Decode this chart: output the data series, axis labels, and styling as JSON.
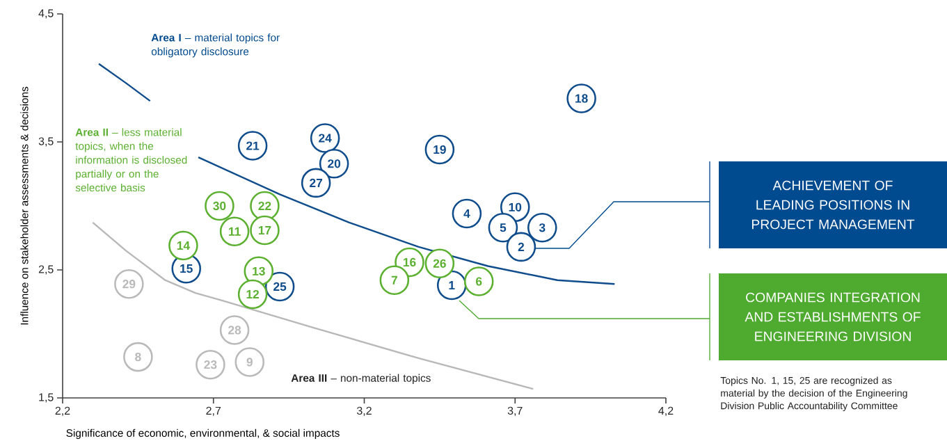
{
  "chart_data": {
    "type": "scatter",
    "xlabel": "Significance of economic, environmental, & social impacts",
    "ylabel": "Influence on stakeholder assessments & decisions",
    "xlim": [
      2.2,
      4.2
    ],
    "ylim": [
      1.5,
      4.5
    ],
    "xticks": [
      {
        "value": 2.2,
        "label": "2,2"
      },
      {
        "value": 2.7,
        "label": "2,7"
      },
      {
        "value": 3.2,
        "label": "3,2"
      },
      {
        "value": 3.7,
        "label": "3,7"
      },
      {
        "value": 4.2,
        "label": "4,2"
      }
    ],
    "yticks": [
      {
        "value": 1.5,
        "label": "1,5"
      },
      {
        "value": 2.5,
        "label": "2,5"
      },
      {
        "value": 3.5,
        "label": "3,5"
      },
      {
        "value": 4.5,
        "label": "4,5"
      }
    ],
    "marker": "circle",
    "series": [
      {
        "type": "line",
        "marker": "none",
        "color": "#b8b8b8",
        "x": [
          2.3,
          2.41,
          2.54,
          2.64,
          2.73,
          3.03,
          3.38,
          3.76
        ],
        "values": [
          2.87,
          2.65,
          2.42,
          2.32,
          2.26,
          2.05,
          1.81,
          1.57
        ]
      },
      {
        "type": "line",
        "marker": "none",
        "color": "#0f4c8c",
        "x": [
          2.32,
          2.41,
          2.49,
          2.57,
          2.65,
          2.92,
          3.15,
          3.38,
          3.61,
          3.84,
          4.03
        ],
        "values": [
          4.11,
          3.96,
          3.82,
          null,
          3.38,
          3.09,
          2.87,
          2.68,
          2.53,
          2.42,
          2.39
        ]
      },
      {
        "color": "#b9b9b9",
        "x": [
          2.42,
          2.77,
          2.45,
          2.69,
          2.82
        ],
        "values": [
          2.39,
          2.03,
          1.82,
          1.76,
          1.78
        ]
      },
      {
        "color": "#0f4c8c",
        "x": [
          3.92,
          2.83,
          3.07,
          3.1,
          3.04,
          3.45,
          3.54,
          3.7,
          3.66,
          3.79,
          3.72,
          3.49,
          2.61,
          2.92
        ],
        "values": [
          3.84,
          3.47,
          3.53,
          3.33,
          3.18,
          3.44,
          2.94,
          2.99,
          2.83,
          2.83,
          2.68,
          2.38,
          2.51,
          2.37
        ]
      },
      {
        "color": "#5bb030",
        "x": [
          2.72,
          2.87,
          2.77,
          2.87,
          2.6,
          2.85,
          2.83,
          3.35,
          3.45,
          3.3,
          3.58
        ],
        "values": [
          3.0,
          3.0,
          2.8,
          2.81,
          2.69,
          2.49,
          2.31,
          2.56,
          2.55,
          2.42,
          2.41
        ]
      }
    ],
    "annotations": [
      "**Area I** – material topics for obligatory disclosure",
      "**Area II** – less material topics, when the information is disclosed partially or on the selective basis",
      "**Area III** – non-material topics",
      "ACHIEVEMENT OF LEADING POSITIONS IN PROJECT MANAGEMENT",
      "COMPANIES INTEGRATION AND ESTABLISHMENTS OF ENGINEERING DIVISION",
      "Topics No. 1, 15, 25 are recognized as material by the decision of the Engineering Division Public Accountability Committee",
      {
        "text": "29",
        "x": 2.42,
        "y": 2.39
      },
      {
        "text": "28",
        "x": 2.77,
        "y": 2.03
      },
      {
        "text": "8",
        "x": 2.45,
        "y": 1.82
      },
      {
        "text": "23",
        "x": 2.69,
        "y": 1.76
      },
      {
        "text": "9",
        "x": 2.82,
        "y": 1.78
      },
      {
        "text": "18",
        "x": 3.92,
        "y": 3.84
      },
      {
        "text": "21",
        "x": 2.83,
        "y": 3.47
      },
      {
        "text": "24",
        "x": 3.07,
        "y": 3.53
      },
      {
        "text": "20",
        "x": 3.1,
        "y": 3.33
      },
      {
        "text": "27",
        "x": 3.04,
        "y": 3.18
      },
      {
        "text": "19",
        "x": 3.45,
        "y": 3.44
      },
      {
        "text": "4",
        "x": 3.54,
        "y": 2.94
      },
      {
        "text": "10",
        "x": 3.7,
        "y": 2.99
      },
      {
        "text": "5",
        "x": 3.66,
        "y": 2.83
      },
      {
        "text": "3",
        "x": 3.79,
        "y": 2.83
      },
      {
        "text": "2",
        "x": 3.72,
        "y": 2.68
      },
      {
        "text": "1",
        "x": 3.49,
        "y": 2.38
      },
      {
        "text": "15",
        "x": 2.61,
        "y": 2.51
      },
      {
        "text": "25",
        "x": 2.92,
        "y": 2.37
      },
      {
        "text": "30",
        "x": 2.72,
        "y": 3.0
      },
      {
        "text": "22",
        "x": 2.87,
        "y": 3.0
      },
      {
        "text": "11",
        "x": 2.77,
        "y": 2.8
      },
      {
        "text": "17",
        "x": 2.87,
        "y": 2.81
      },
      {
        "text": "14",
        "x": 2.6,
        "y": 2.69
      },
      {
        "text": "13",
        "x": 2.85,
        "y": 2.49
      },
      {
        "text": "12",
        "x": 2.83,
        "y": 2.31
      },
      {
        "text": "16",
        "x": 3.35,
        "y": 2.56
      },
      {
        "text": "26",
        "x": 3.45,
        "y": 2.55
      },
      {
        "text": "7",
        "x": 3.3,
        "y": 2.42
      },
      {
        "text": "6",
        "x": 3.58,
        "y": 2.41
      }
    ]
  }
}
